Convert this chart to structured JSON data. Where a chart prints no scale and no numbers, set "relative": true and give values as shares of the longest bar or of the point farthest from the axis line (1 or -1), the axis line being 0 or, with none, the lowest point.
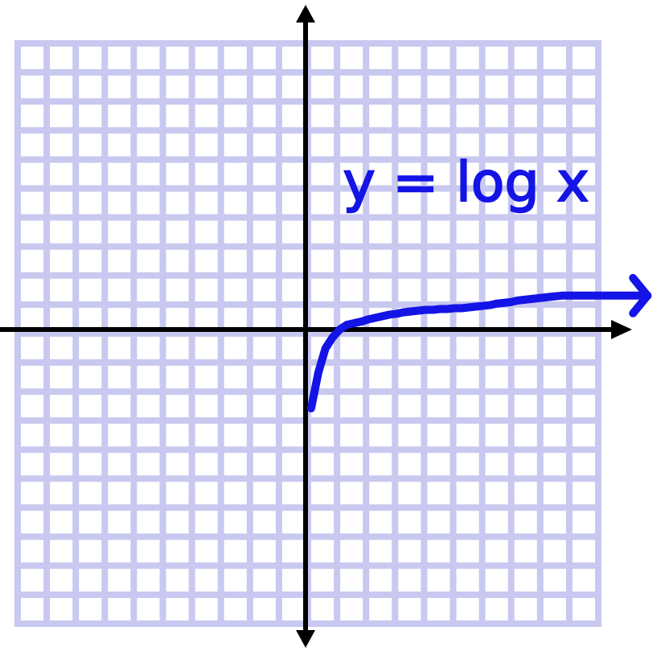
{
  "chart_data": {
    "type": "line",
    "relative": true,
    "grid": true,
    "legend": "top right",
    "marker": "none",
    "line_style": "solid",
    "categories": [
      null,
      null,
      null,
      null,
      null,
      null,
      null,
      null,
      null,
      null,
      null,
      null,
      null,
      null,
      null,
      null,
      null,
      null,
      null,
      null,
      null,
      null,
      null,
      null,
      null,
      null,
      null,
      null,
      null,
      null,
      null,
      null,
      null,
      null,
      null,
      null,
      null,
      null,
      null,
      null,
      null,
      null,
      null,
      null,
      null,
      null,
      null,
      null,
      null,
      null,
      null,
      null,
      null,
      null,
      null,
      null,
      null,
      null,
      null,
      null,
      null,
      null,
      null,
      null,
      null,
      null,
      null,
      null,
      null,
      null,
      null,
      null,
      null,
      null,
      null,
      null,
      null,
      null,
      null,
      null,
      null,
      null,
      null,
      null,
      null,
      null,
      null,
      null,
      null
    ],
    "series": [
      {
        "name": "y = log x",
        "color": "#1414e6",
        "values": [
          null,
          null,
          null,
          null,
          null,
          null,
          null,
          null,
          null,
          null,
          null,
          null,
          null,
          null,
          null,
          null,
          null,
          null,
          null,
          null,
          null,
          null,
          null,
          null,
          null,
          null,
          null,
          null,
          null,
          null,
          null,
          null,
          null,
          null,
          null,
          null,
          null,
          null,
          null,
          null,
          null,
          -1,
          -0.55,
          -0.24,
          -0.1,
          0,
          0.06,
          0.08,
          0.1,
          0.13,
          0.15,
          0.17,
          0.19,
          0.2,
          0.22,
          0.23,
          0.24,
          0.25,
          0.25,
          0.26,
          0.26,
          0.27,
          0.27,
          0.28,
          0.29,
          0.3,
          0.31,
          0.33,
          0.34,
          0.35,
          0.37,
          0.38,
          0.39,
          0.4,
          0.41,
          0.42,
          0.43,
          0.43,
          0.43,
          0.43,
          0.43,
          0.43,
          0.43,
          0.43,
          0.43,
          0.43,
          0.43,
          0.43,
          0.43
        ]
      }
    ]
  }
}
